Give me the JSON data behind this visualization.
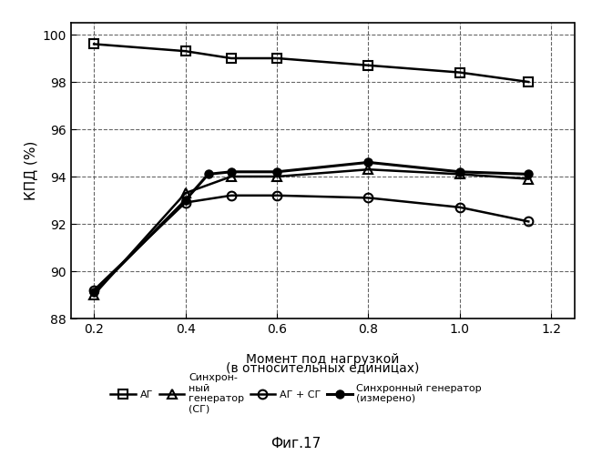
{
  "xlabel_line1": "Момент под нагрузкой",
  "xlabel_line2": "(в относительных единицах)",
  "ylabel": "КПД (%)",
  "xlim": [
    0.15,
    1.25
  ],
  "ylim": [
    88,
    100.5
  ],
  "yticks": [
    88,
    90,
    92,
    94,
    96,
    98,
    100
  ],
  "xticks": [
    0.2,
    0.4,
    0.6,
    0.8,
    1.0,
    1.2
  ],
  "caption": "Фиг.17",
  "series": {
    "AG": {
      "label": "АГ",
      "x": [
        0.2,
        0.4,
        0.5,
        0.6,
        0.8,
        1.0,
        1.15
      ],
      "y": [
        99.6,
        99.3,
        99.0,
        99.0,
        98.7,
        98.4,
        98.0
      ],
      "marker": "s",
      "linewidth": 1.8,
      "markersize": 7,
      "fillstyle": "none"
    },
    "SG": {
      "label": "Синхрон-\nный\nгенератор\n(СГ)",
      "x": [
        0.2,
        0.4,
        0.5,
        0.6,
        0.8,
        1.0,
        1.15
      ],
      "y": [
        89.0,
        93.3,
        94.0,
        94.0,
        94.3,
        94.1,
        93.9
      ],
      "marker": "^",
      "linewidth": 1.8,
      "markersize": 7,
      "fillstyle": "none"
    },
    "AG_SG": {
      "label": "АГ + СГ",
      "x": [
        0.2,
        0.4,
        0.5,
        0.6,
        0.8,
        1.0,
        1.15
      ],
      "y": [
        89.2,
        92.9,
        93.2,
        93.2,
        93.1,
        92.7,
        92.1
      ],
      "marker": "o",
      "linewidth": 1.8,
      "markersize": 7,
      "fillstyle": "none"
    },
    "SG_measured": {
      "label": "Синхронный генератор\n(измерено)",
      "x": [
        0.2,
        0.4,
        0.45,
        0.5,
        0.6,
        0.8,
        1.0,
        1.15
      ],
      "y": [
        89.1,
        93.0,
        94.1,
        94.2,
        94.2,
        94.6,
        94.2,
        94.1
      ],
      "marker": "o",
      "linewidth": 2.2,
      "markersize": 6,
      "fillstyle": "full"
    }
  }
}
